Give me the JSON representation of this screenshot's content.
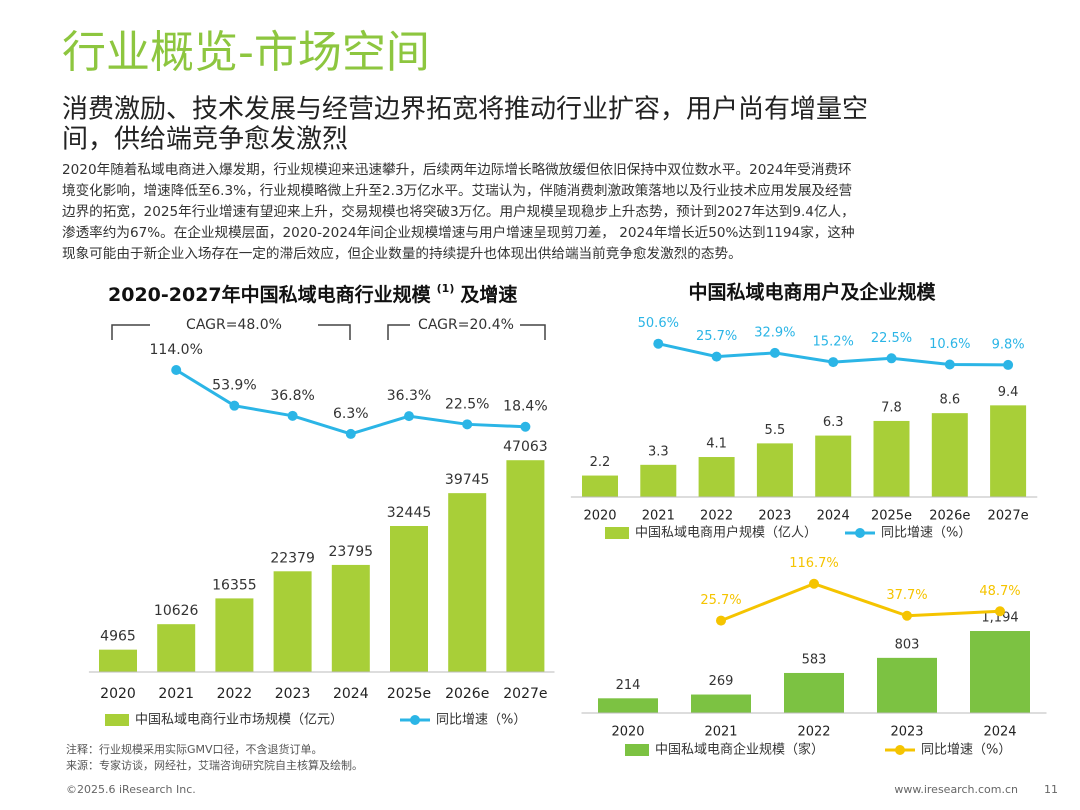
{
  "header": {
    "title": "行业概览-市场空间",
    "subtitle": [
      "消费激励、技术发展与经营边界拓宽将推动行业扩容，用户尚有增量空",
      "间，供给端竞争愈发激烈"
    ],
    "body": [
      "2020年随着私域电商进入爆发期，行业规模迎来迅速攀升，后续两年边际增长略微放缓但依旧保持中双位数水平。2024年受消费环",
      "境变化影响，增速降低至6.3%，行业规模略微上升至2.3万亿水平。艾瑞认为，伴随消费刺激政策落地以及行业技术应用发展及经营",
      "边界的拓宽，2025年行业增速有望迎来上升，交易规模也将突破3万亿。用户规模呈现稳步上升态势，预计到2027年达到9.4亿人，",
      "渗透率约为67%。在企业规模层面，2020-2024年间企业规模增速与用户增速呈现剪刀差， 2024年增长近50%达到1194家，这种",
      "现象可能由于新企业入场存在一定的滞后效应，但企业数量的持续提升也体现出供给端当前竞争愈发激烈的态势。"
    ]
  },
  "right_heading": "中国私域电商用户及企业规模",
  "chart_data": [
    {
      "type": "combo",
      "title": "2020-2027年中国私域电商行业规模",
      "title_note": "(1)",
      "title_end": "及增速",
      "categories": [
        "2020",
        "2021",
        "2022",
        "2023",
        "2024",
        "2025e",
        "2026e",
        "2027e"
      ],
      "series": [
        {
          "name": "中国私域电商行业市场规模（亿元）",
          "color": "#a8cf38",
          "values": [
            4965,
            10626,
            16355,
            22379,
            23795,
            32445,
            39745,
            47063
          ]
        },
        {
          "name": "同比增速（%）",
          "color": "#2bb5e6",
          "axis": "y2",
          "values": [
            null,
            114.0,
            53.9,
            36.8,
            6.3,
            36.3,
            22.5,
            18.4
          ],
          "value_labels": [
            null,
            "114.0%",
            "53.9%",
            "36.8%",
            "6.3%",
            "36.3%",
            "22.5%",
            "18.4%"
          ]
        }
      ],
      "ylim": [
        0,
        60000
      ],
      "y2lim": [
        -100,
        200
      ],
      "annotations": [
        "CAGR=48.0%",
        "CAGR=20.4%"
      ]
    },
    {
      "type": "combo",
      "categories": [
        "2020",
        "2021",
        "2022",
        "2023",
        "2024",
        "2025e",
        "2026e",
        "2027e"
      ],
      "series": [
        {
          "name": "中国私域电商用户规模（亿人）",
          "color": "#a8cf38",
          "values": [
            2.2,
            3.3,
            4.1,
            5.5,
            6.3,
            7.8,
            8.6,
            9.4
          ]
        },
        {
          "name": "同比增速（%）",
          "color": "#2bb5e6",
          "axis": "y2",
          "values": [
            null,
            50.6,
            25.7,
            32.9,
            15.2,
            22.5,
            10.6,
            9.8
          ],
          "value_labels": [
            null,
            "50.6%",
            "25.7%",
            "32.9%",
            "15.2%",
            "22.5%",
            "10.6%",
            "9.8%"
          ]
        }
      ],
      "ylim": [
        0,
        12
      ],
      "y2lim": [
        0,
        100
      ]
    },
    {
      "type": "combo",
      "categories": [
        "2020",
        "2021",
        "2022",
        "2023",
        "2024"
      ],
      "series": [
        {
          "name": "中国私域电商企业规模（家）",
          "color": "#7cc242",
          "values": [
            214,
            269,
            583,
            803,
            1194
          ],
          "value_labels": [
            "214",
            "269",
            "583",
            "803",
            "1,194"
          ]
        },
        {
          "name": "同比增速（%）",
          "color": "#f5c400",
          "axis": "y2",
          "values": [
            null,
            25.7,
            116.7,
            37.7,
            48.7
          ],
          "value_labels": [
            null,
            "25.7%",
            "116.7%",
            "37.7%",
            "48.7%"
          ]
        }
      ],
      "ylim": [
        0,
        1500
      ],
      "y2lim": [
        0,
        200
      ]
    }
  ],
  "footer": {
    "note": "注释：行业规模采用实际GMV口径，不含退货订单。",
    "source": "来源：专家访谈，网经社，艾瑞咨询研究院自主核算及绘制。",
    "copyright": "©2025.6 iResearch Inc.",
    "url": "www.iresearch.com.cn",
    "page": "11"
  }
}
